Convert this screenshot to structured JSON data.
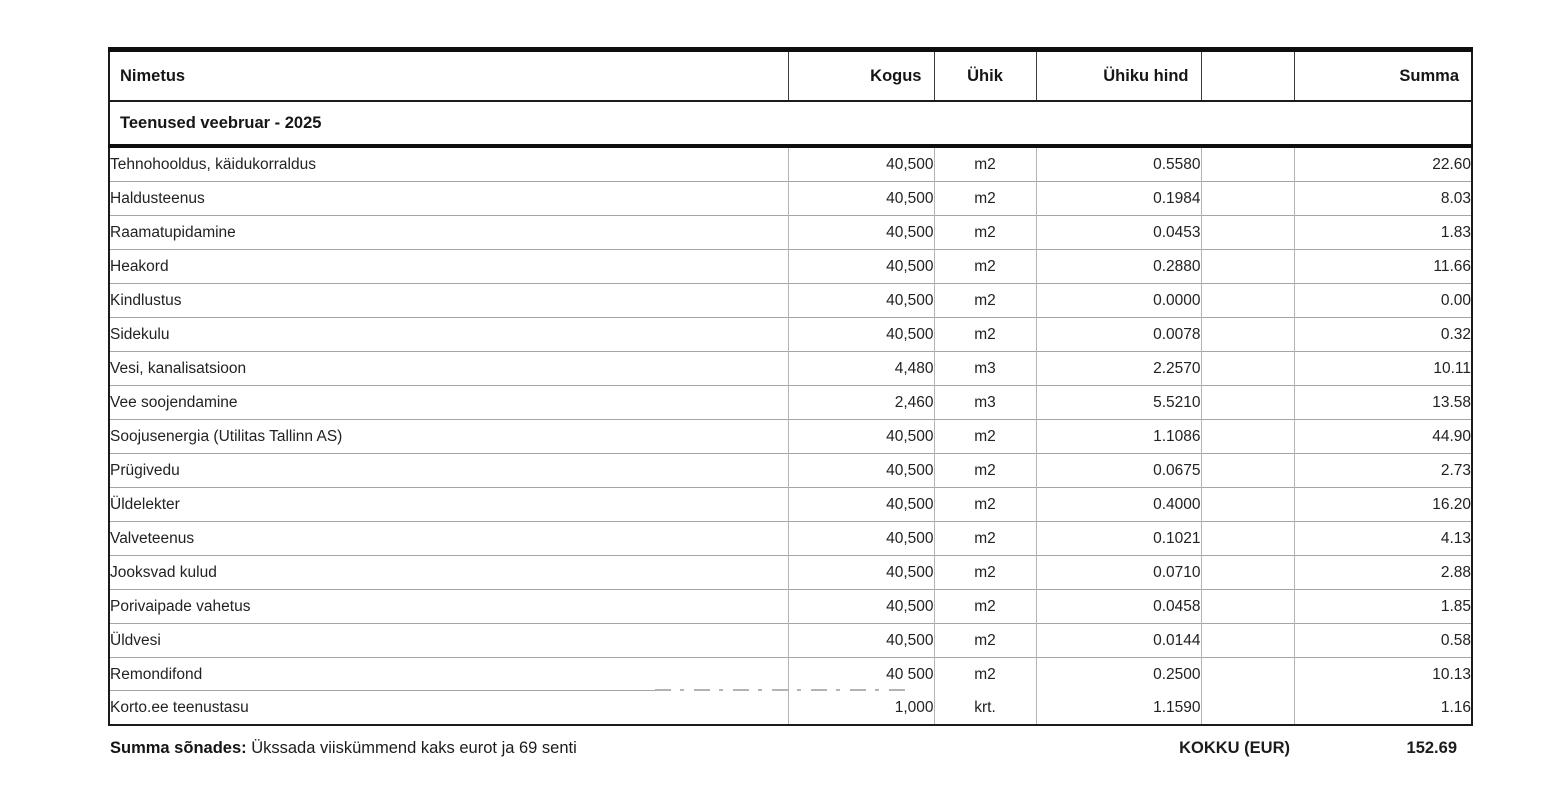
{
  "table": {
    "columns": [
      {
        "label": "Nimetus"
      },
      {
        "label": "Kogus"
      },
      {
        "label": "Ühik"
      },
      {
        "label": "Ühiku hind"
      },
      {
        "label": ""
      },
      {
        "label": "Summa"
      }
    ],
    "section_title": "Teenused veebruar - 2025",
    "rows": [
      {
        "name": "Tehnohooldus, käidukorraldus",
        "qty": "40,500",
        "unit": "m2",
        "price": "0.5580",
        "sum": "22.60"
      },
      {
        "name": "Haldusteenus",
        "qty": "40,500",
        "unit": "m2",
        "price": "0.1984",
        "sum": "8.03"
      },
      {
        "name": "Raamatupidamine",
        "qty": "40,500",
        "unit": "m2",
        "price": "0.0453",
        "sum": "1.83"
      },
      {
        "name": "Heakord",
        "qty": "40,500",
        "unit": "m2",
        "price": "0.2880",
        "sum": "11.66"
      },
      {
        "name": "Kindlustus",
        "qty": "40,500",
        "unit": "m2",
        "price": "0.0000",
        "sum": "0.00"
      },
      {
        "name": "Sidekulu",
        "qty": "40,500",
        "unit": "m2",
        "price": "0.0078",
        "sum": "0.32"
      },
      {
        "name": "Vesi, kanalisatsioon",
        "qty": "4,480",
        "unit": "m3",
        "price": "2.2570",
        "sum": "10.11"
      },
      {
        "name": "Vee soojendamine",
        "qty": "2,460",
        "unit": "m3",
        "price": "5.5210",
        "sum": "13.58"
      },
      {
        "name": "Soojusenergia (Utilitas Tallinn AS)",
        "qty": "40,500",
        "unit": "m2",
        "price": "1.1086",
        "sum": "44.90"
      },
      {
        "name": "Prügivedu",
        "qty": "40,500",
        "unit": "m2",
        "price": "0.0675",
        "sum": "2.73"
      },
      {
        "name": "Üldelekter",
        "qty": "40,500",
        "unit": "m2",
        "price": "0.4000",
        "sum": "16.20"
      },
      {
        "name": "Valveteenus",
        "qty": "40,500",
        "unit": "m2",
        "price": "0.1021",
        "sum": "4.13"
      },
      {
        "name": "Jooksvad kulud",
        "qty": "40,500",
        "unit": "m2",
        "price": "0.0710",
        "sum": "2.88"
      },
      {
        "name": "Porivaipade vahetus",
        "qty": "40,500",
        "unit": "m2",
        "price": "0.0458",
        "sum": "1.85"
      },
      {
        "name": "Üldvesi",
        "qty": "40,500",
        "unit": "m2",
        "price": "0.0144",
        "sum": "0.58"
      },
      {
        "name": "Remondifond",
        "qty": "40 500",
        "unit": "m2",
        "price": "0.2500",
        "sum": "10.13"
      },
      {
        "name": "Korto.ee teenustasu",
        "qty": "1,000",
        "unit": "krt.",
        "price": "1.1590",
        "sum": "1.16"
      }
    ]
  },
  "footer": {
    "amount_in_words_label": "Summa sõnades:",
    "amount_in_words": "Ükssada viiskümmend kaks eurot ja 69 senti",
    "total_label": "KOKKU (EUR)",
    "total_value": "152.69"
  },
  "colors": {
    "background": "#ffffff",
    "text": "#1f1f1f",
    "border_dark": "#0e0e0e",
    "border_gray": "#a5a5a5",
    "artifact_gray": "#b3b3b3"
  }
}
